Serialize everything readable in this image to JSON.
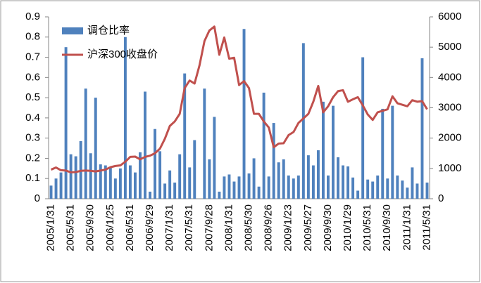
{
  "chart_data": {
    "type": "bar-line",
    "categories": [
      "2005/1/31",
      null,
      null,
      null,
      "2005/5/31",
      null,
      null,
      null,
      "2005/9/30",
      null,
      null,
      null,
      "2006/1/25",
      null,
      null,
      null,
      "2006/5/31",
      null,
      null,
      null,
      "2006/9/29",
      null,
      null,
      null,
      "2007/1/31",
      null,
      null,
      null,
      "2007/5/31",
      null,
      null,
      null,
      "2007/9/28",
      null,
      null,
      null,
      "2008/1/31",
      null,
      null,
      null,
      "2008/5/30",
      null,
      null,
      null,
      "2008/9/26",
      null,
      null,
      null,
      "2009/1/23",
      null,
      null,
      null,
      "2009/5/27",
      null,
      null,
      null,
      "2009/9/30",
      null,
      null,
      null,
      "2010/1/29",
      null,
      null,
      null,
      "2010/5/31",
      null,
      null,
      null,
      "2010/9/30",
      null,
      null,
      null,
      "2011/1/31",
      null,
      null,
      null,
      "2011/5/31"
    ],
    "series": [
      {
        "name": "调仓比率",
        "type": "bar",
        "color": "#4f81bd",
        "values": [
          0.065,
          0.1,
          0.13,
          0.75,
          0.22,
          0.21,
          0.285,
          0.545,
          0.225,
          0.5,
          0.17,
          0.165,
          0.155,
          0.1,
          0.15,
          0.8,
          0.165,
          0.13,
          0.23,
          0.53,
          0.035,
          0.345,
          0.235,
          0.075,
          0.14,
          0.08,
          0.22,
          0.62,
          0.155,
          0.29,
          0,
          0.545,
          0.195,
          0.405,
          0.035,
          0.11,
          0.12,
          0.085,
          0.11,
          0.84,
          0.125,
          0.2,
          0.06,
          0.525,
          0.11,
          0.375,
          0.18,
          0.195,
          0.115,
          0.1,
          0.115,
          0.77,
          0.215,
          0.165,
          0.24,
          0.48,
          0.115,
          0.46,
          0.205,
          0.165,
          0.16,
          0.105,
          0.04,
          0.7,
          0.095,
          0.085,
          0.115,
          0.445,
          0.1,
          0.46,
          0.115,
          0.09,
          0.055,
          0.155,
          0.075,
          0.695,
          0.08
        ]
      },
      {
        "name": "沪深300收盘价",
        "type": "line",
        "axis": "y2",
        "color": "#c0504d",
        "values": [
          960,
          1030,
          940,
          930,
          870,
          880,
          920,
          930,
          920,
          900,
          930,
          960,
          1040,
          1080,
          1100,
          1220,
          1380,
          1390,
          1300,
          1380,
          1420,
          1500,
          1650,
          1980,
          2400,
          2550,
          2800,
          3650,
          3900,
          3800,
          4400,
          5200,
          5550,
          5680,
          4750,
          5320,
          4620,
          4650,
          3750,
          3880,
          3650,
          2800,
          2800,
          2550,
          2350,
          1700,
          1820,
          1830,
          2100,
          2200,
          2500,
          2650,
          2800,
          3200,
          3720,
          2850,
          3050,
          3350,
          3550,
          3580,
          3200,
          3280,
          3350,
          3080,
          2780,
          2600,
          2850,
          2900,
          2950,
          3380,
          3150,
          3100,
          3050,
          3250,
          3200,
          3220,
          2950
        ]
      }
    ],
    "ylim": [
      0,
      0.9
    ],
    "yticks": [
      0,
      0.1,
      0.2,
      0.3,
      0.4,
      0.5,
      0.6,
      0.7,
      0.8,
      0.9
    ],
    "y2lim": [
      0,
      6000
    ],
    "y2ticks": [
      0,
      1000,
      2000,
      3000,
      4000,
      5000,
      6000
    ],
    "grid": false
  }
}
